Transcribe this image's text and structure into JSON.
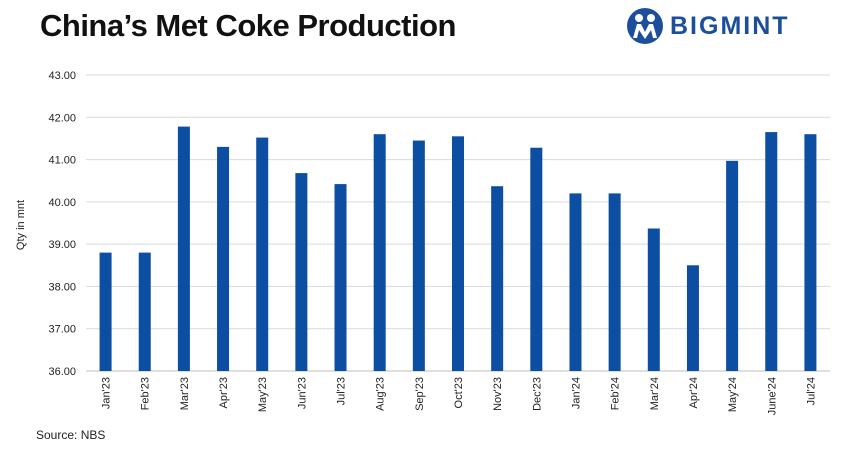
{
  "header": {
    "title": "China’s Met Coke Production",
    "brand_name": "BIGMINT"
  },
  "footer": {
    "source": "Source: NBS"
  },
  "colors": {
    "bar": "#0b4ea2",
    "grid": "#d9d9d9",
    "brand": "#1b4f9c"
  },
  "chart_data": {
    "type": "bar",
    "title": "China’s Met Coke Production",
    "xlabel": "",
    "ylabel": "Qty in mnt",
    "ylim": [
      36,
      43
    ],
    "yticks": [
      "36.00",
      "37.00",
      "38.00",
      "39.00",
      "40.00",
      "41.00",
      "42.00",
      "43.00"
    ],
    "grid": true,
    "legend": "none",
    "categories": [
      "Jan'23",
      "Feb'23",
      "Mar'23",
      "Apr'23",
      "May'23",
      "Jun'23",
      "Jul'23",
      "Aug'23",
      "Sep'23",
      "Oct'23",
      "Nov'23",
      "Dec'23",
      "Jan'24",
      "Feb'24",
      "Mar'24",
      "Apr'24",
      "May'24",
      "June'24",
      "Jul'24"
    ],
    "values": [
      38.8,
      38.8,
      41.78,
      41.3,
      41.52,
      40.68,
      40.42,
      41.6,
      41.45,
      41.55,
      40.37,
      41.28,
      40.2,
      40.2,
      39.37,
      38.5,
      40.97,
      41.65,
      41.6
    ]
  }
}
